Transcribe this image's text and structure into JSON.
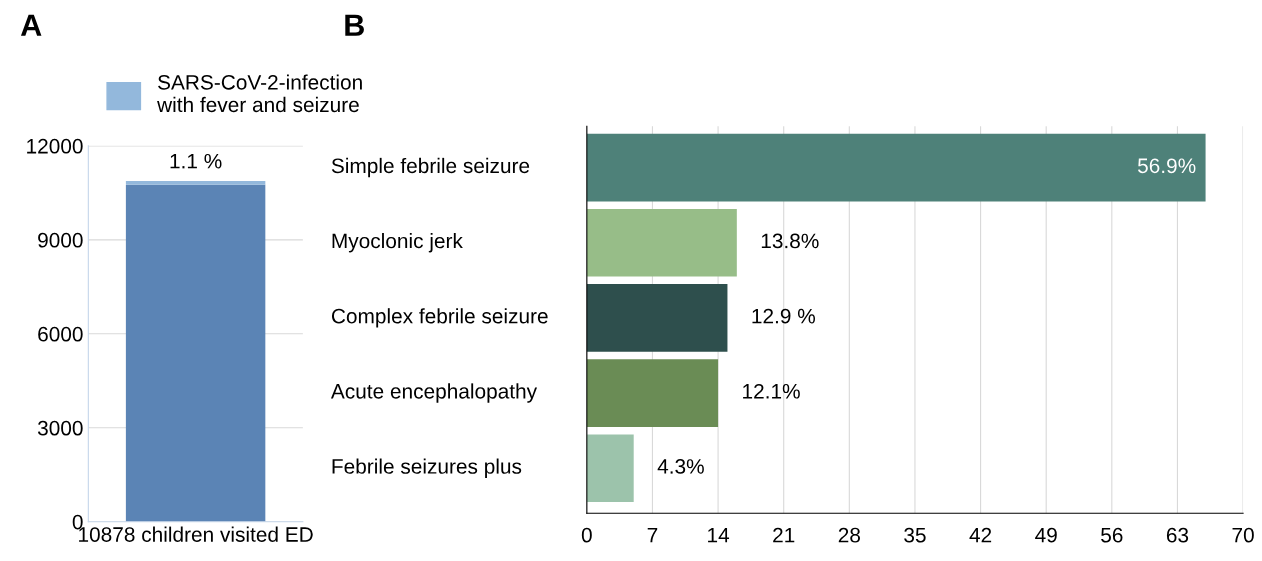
{
  "chart_data": [
    {
      "type": "bar",
      "title": "A",
      "categories": [
        "10878 children visited ED"
      ],
      "stacked": true,
      "series": [
        {
          "color": "#5b84b5",
          "values": [
            10758
          ]
        },
        {
          "name": "SARS-CoV-2-infection with fever and seizure",
          "color": "#93b8dc",
          "values": [
            120
          ]
        }
      ],
      "annotations": [
        {
          "text": "1.1 %",
          "x": "10878 children visited ED",
          "y": 10878
        }
      ],
      "ylim": [
        0,
        12000
      ],
      "yticks": [
        0,
        3000,
        6000,
        9000,
        12000
      ],
      "grid": "y",
      "legend": "top"
    },
    {
      "type": "bar",
      "title": "B",
      "orientation": "horizontal",
      "categories": [
        "Simple febrile seizure",
        "Myoclonic jerk",
        "Complex febrile seizure",
        "Acute encephalopathy",
        "Febrile seizures plus"
      ],
      "values": [
        66,
        16,
        15,
        14,
        5
      ],
      "colors": [
        "#4e8179",
        "#97bd88",
        "#2e4f4d",
        "#6a8c55",
        "#9cc3ab"
      ],
      "annotations": [
        {
          "text": "56.9%",
          "x": 66,
          "y": "Simple febrile seizure"
        },
        {
          "text": "13.8%",
          "x": 16,
          "y": "Myoclonic jerk"
        },
        {
          "text": "12.9 %",
          "x": 15,
          "y": "Complex febrile seizure"
        },
        {
          "text": "12.1%",
          "x": 14,
          "y": "Acute encephalopathy"
        },
        {
          "text": "4.3%",
          "x": 5,
          "y": "Febrile seizures plus"
        }
      ],
      "xlim": [
        0,
        70
      ],
      "xticks": [
        0,
        7,
        14,
        21,
        28,
        35,
        42,
        49,
        56,
        63,
        70
      ],
      "grid": "x"
    }
  ]
}
